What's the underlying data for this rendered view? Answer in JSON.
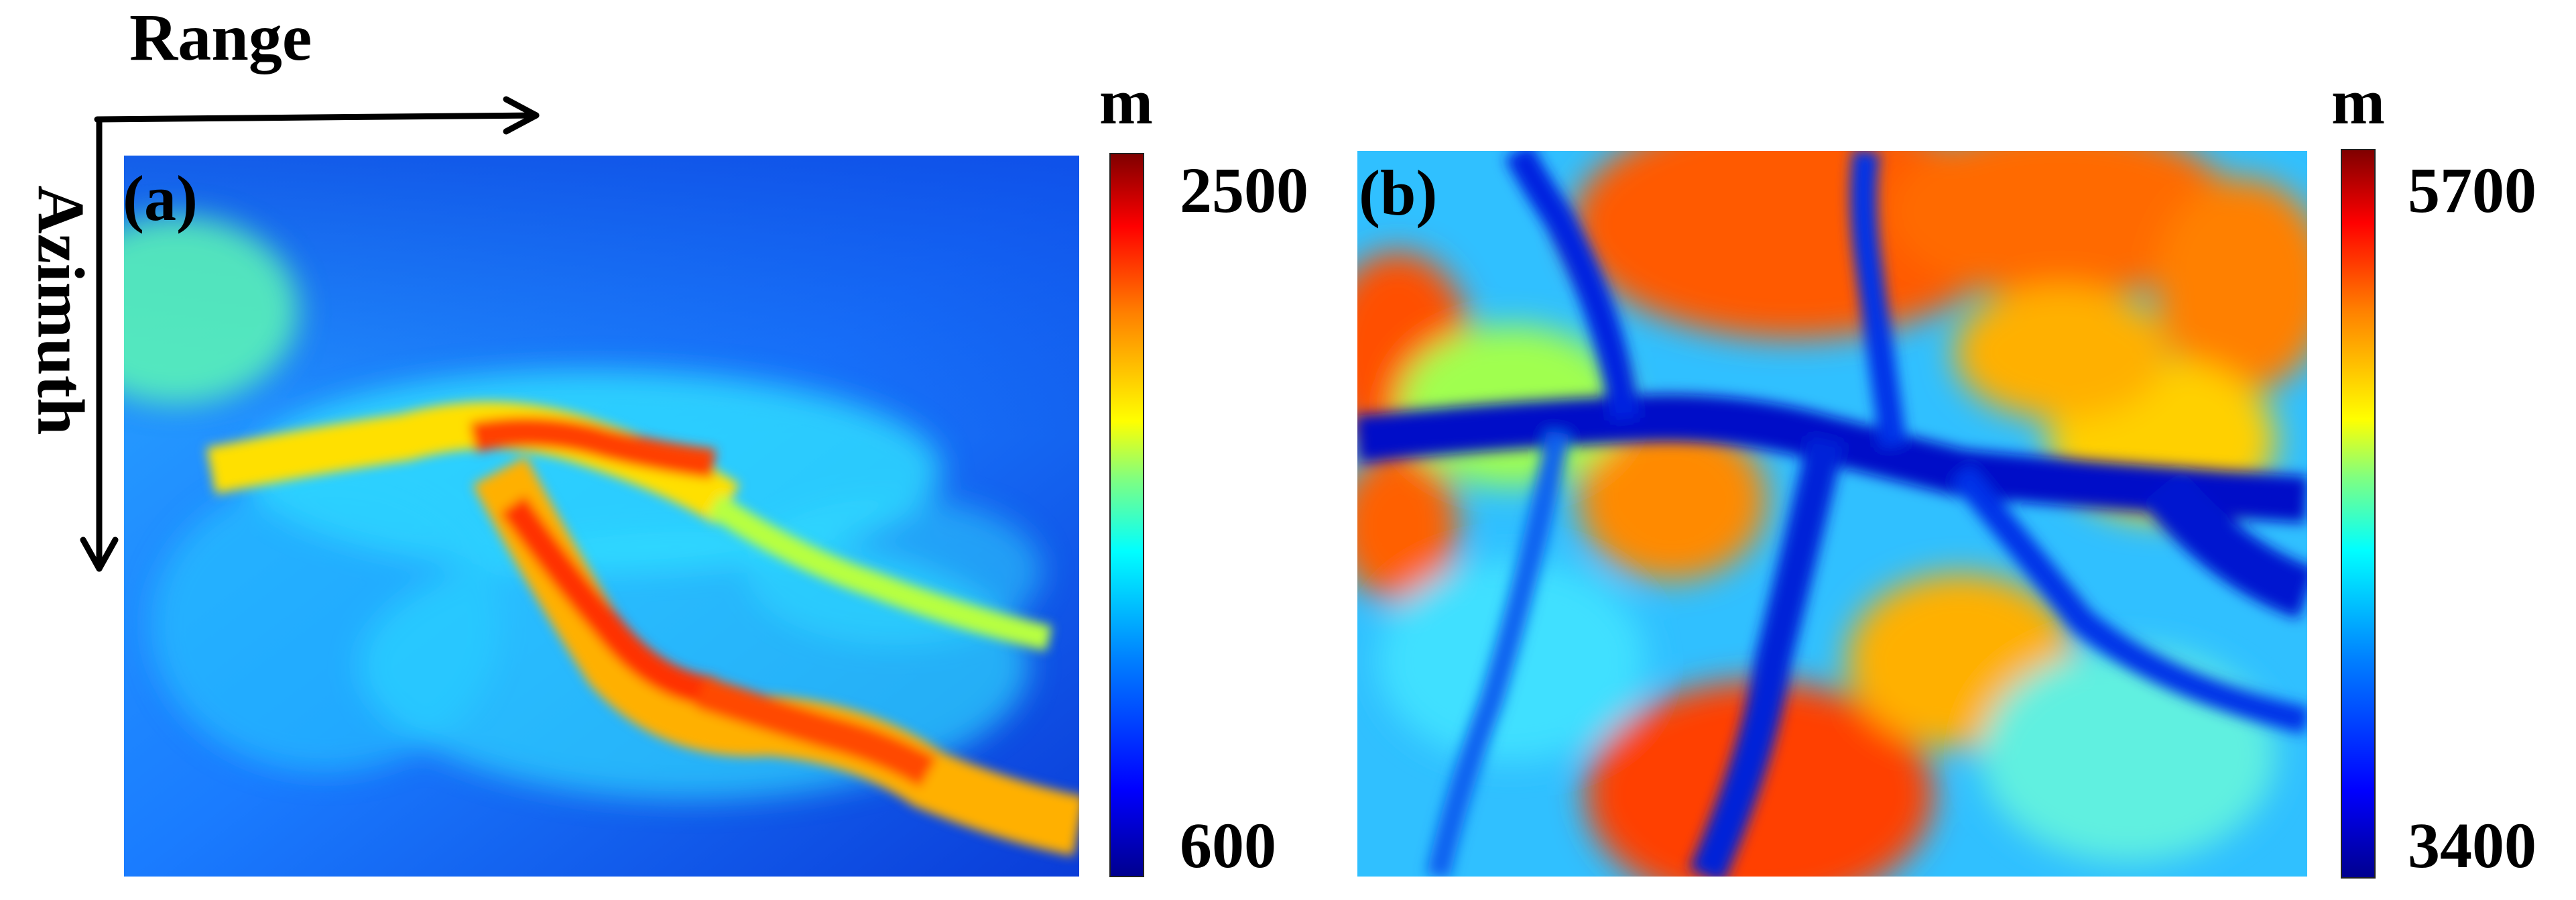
{
  "axes": {
    "range_label": "Range",
    "azimuth_label": "Azimuth"
  },
  "panels": [
    {
      "tag": "(a)",
      "colorbar": {
        "unit": "m",
        "max": "2500",
        "min": "600"
      },
      "colormap": "jet"
    },
    {
      "tag": "(b)",
      "colorbar": {
        "unit": "m",
        "max": "5700",
        "min": "3400"
      },
      "colormap": "jet"
    }
  ],
  "colors": {
    "low": "#00008f",
    "mid": "#00ffff",
    "high": "#800000"
  }
}
